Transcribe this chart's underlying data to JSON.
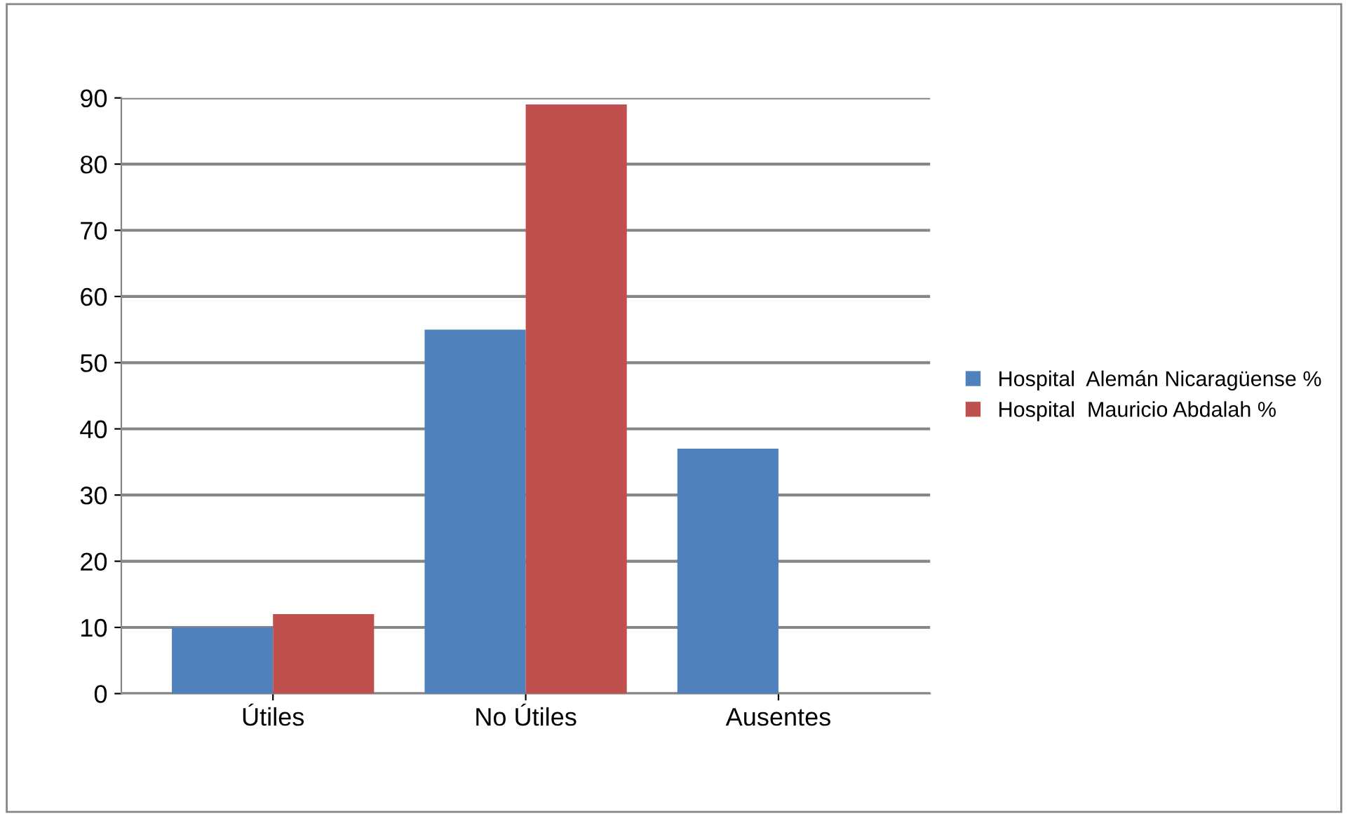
{
  "chart_data": {
    "type": "bar",
    "categories": [
      "Útiles",
      "No Útiles",
      "Ausentes"
    ],
    "series": [
      {
        "name": "Hospital  Alemán Nicaragüense %",
        "color": "#4f81bd",
        "values": [
          10,
          55,
          37
        ]
      },
      {
        "name": "Hospital  Mauricio Abdalah %",
        "color": "#c0504d",
        "values": [
          12,
          89,
          0
        ]
      }
    ],
    "ylim": [
      0,
      90
    ],
    "yticks": [
      0,
      10,
      20,
      30,
      40,
      50,
      60,
      70,
      80,
      90
    ],
    "grid": "y",
    "legend": "right"
  }
}
